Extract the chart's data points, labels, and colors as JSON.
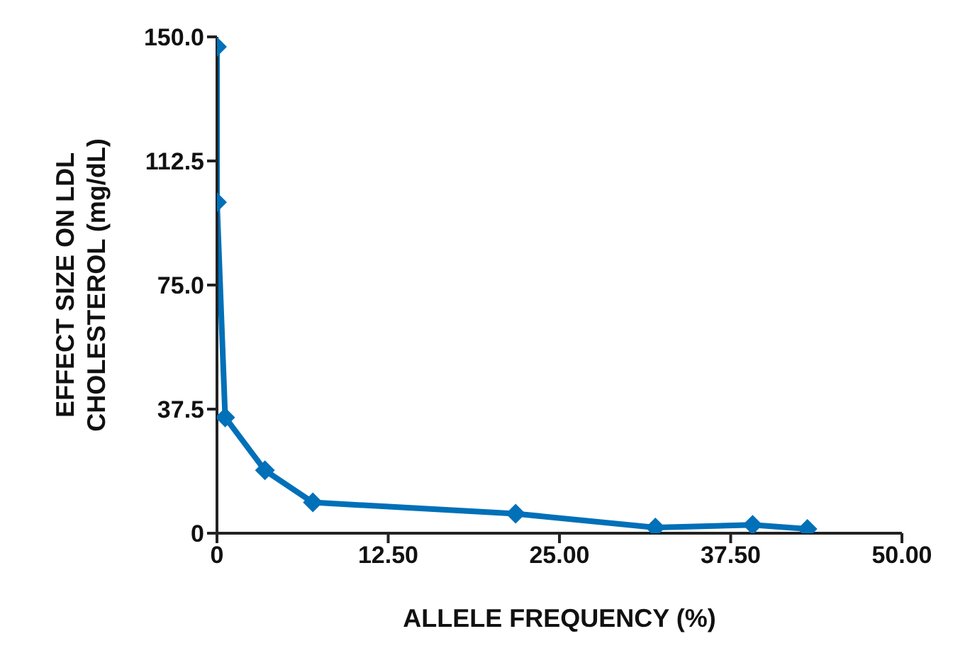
{
  "chart_data": {
    "type": "line",
    "xlabel": "ALLELE FREQUENCY (%)",
    "ylabel": "EFFECT SIZE ON LDL CHOLESTEROL (mg/dL)",
    "x": [
      0,
      0,
      0.6,
      3.5,
      7,
      21.8,
      32,
      39.1,
      43.1
    ],
    "series": [
      {
        "color": "#0070b8",
        "values": [
          147,
          100,
          35,
          19,
          9.3,
          5.9,
          1.7,
          2.5,
          1.3
        ]
      }
    ],
    "xlim": [
      0,
      50
    ],
    "xticks": [
      0,
      {
        "value": 12.5,
        "label": "12.50"
      },
      {
        "value": 25,
        "label": "25.00"
      },
      {
        "value": 37.5,
        "label": "37.50"
      },
      {
        "value": 50,
        "label": "50.00"
      }
    ],
    "ylim": [
      0,
      150
    ],
    "yticks": [
      0,
      {
        "value": 37.5,
        "label": "37.5"
      },
      {
        "value": 75,
        "label": "75.0"
      },
      {
        "value": 112.5,
        "label": "112.5"
      },
      {
        "value": 150,
        "label": "150.0"
      }
    ],
    "grid": false,
    "legend": false,
    "marker": "diamond",
    "line_style": "solid"
  }
}
